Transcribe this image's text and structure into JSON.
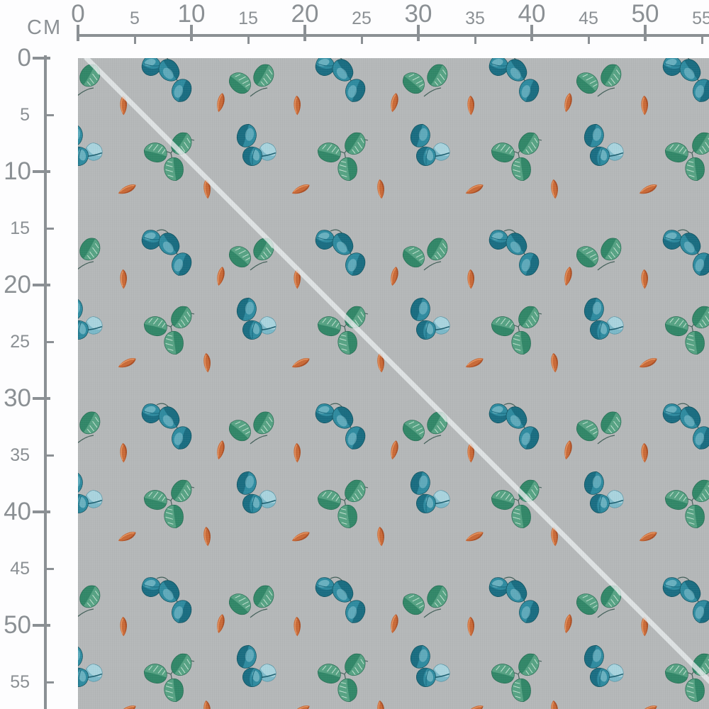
{
  "ruler": {
    "unit_label": "CM",
    "horizontal": {
      "major_ticks": [
        0,
        10,
        20,
        30,
        40,
        50
      ],
      "minor_ticks": [
        5,
        15,
        25,
        35,
        45,
        55
      ]
    },
    "vertical": {
      "major_ticks": [
        0,
        10,
        20,
        30,
        40,
        50
      ],
      "minor_ticks": [
        5,
        15,
        25,
        35,
        45,
        55
      ]
    }
  },
  "fabric": {
    "motifs": [
      "green-leaf-pair",
      "green-leaf-cluster",
      "teal-leaf-trio",
      "teal-leaf-pair",
      "light-blue-leaf",
      "orange-feather"
    ]
  },
  "colors": {
    "page_bg": "#fdfdfe",
    "ruler": "#8b9094",
    "fabric_bg": "#b5b8b9",
    "fold_highlight": "#e9eced",
    "leaf_green_dark": "#2f8566",
    "leaf_green_mid": "#57a384",
    "leaf_green_light": "#c2e1d1",
    "leaf_green_outline": "#266b52",
    "leaf_teal_dark": "#17697e",
    "leaf_teal_mid": "#2f8ba0",
    "leaf_teal_light": "#90cad5",
    "leaf_teal_outline": "#0f4f5c",
    "leaf_blue_light": "#a9d4de",
    "leaf_blue_mid": "#6fb3c4",
    "feather_orange_dark": "#a84a20",
    "feather_orange_mid": "#c96a38",
    "feather_orange_light": "#e89a66",
    "stem": "#44605a"
  }
}
